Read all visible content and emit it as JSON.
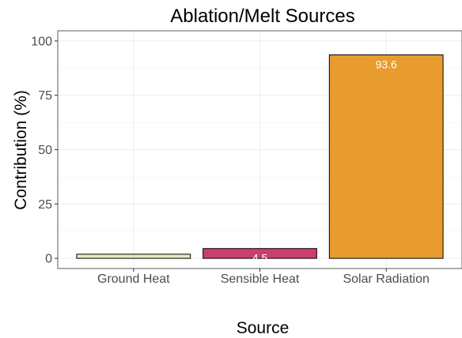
{
  "chart_data": {
    "type": "bar",
    "title": "Ablation/Melt Sources",
    "xlabel": "Source",
    "ylabel": "Contribution (%)",
    "categories": [
      "Ground Heat",
      "Sensible Heat",
      "Solar Radiation"
    ],
    "values": [
      1.9,
      4.5,
      93.6
    ],
    "data_labels": [
      "",
      "4.5",
      "93.6"
    ],
    "colors": [
      "#e5ebc0",
      "#cc3e6e",
      "#e89b2f"
    ],
    "ylim": [
      -4.68,
      104.68
    ],
    "yticks": [
      0,
      25,
      50,
      75,
      100
    ],
    "grid": true,
    "legend": "none"
  }
}
